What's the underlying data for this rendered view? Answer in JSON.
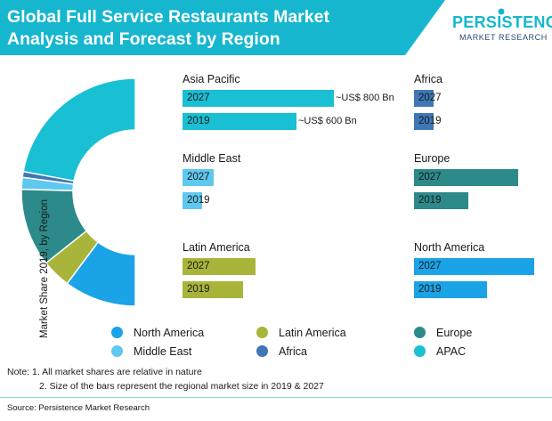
{
  "header": {
    "title_line1": "Global Full Service Restaurants Market",
    "title_line2": "Analysis and Forecast by Region"
  },
  "logo": {
    "top_text": "PERSISTENCE",
    "bottom_text": "MARKET RESEARCH"
  },
  "colors": {
    "title_bg": "#17b6cf",
    "north_america": "#1aa3e6",
    "latin_america": "#a9b43a",
    "europe": "#2d8a8a",
    "middle_east": "#5ec8ee",
    "africa": "#3e76b6",
    "apac": "#19bfd3"
  },
  "chart_data": [
    {
      "type": "pie",
      "variant": "half-donut",
      "ylabel": "Market Share 2019, by Region",
      "categories": [
        "APAC",
        "Africa",
        "Middle East",
        "Europe",
        "Latin America",
        "North America"
      ],
      "values": [
        38.1,
        1.4,
        2.9,
        19.1,
        7.1,
        17.6
      ],
      "colors": [
        "#19bfd3",
        "#3e76b6",
        "#5ec8ee",
        "#2d8a8a",
        "#a9b43a",
        "#1aa3e6"
      ],
      "note": "All market shares are relative in nature"
    },
    {
      "type": "bar",
      "orientation": "horizontal",
      "series": [
        {
          "name": "Asia Pacific",
          "categories": [
            "2027",
            "2019"
          ],
          "values": [
            800,
            600
          ],
          "labels": [
            "~US$ 800 Bn",
            "~US$ 600 Bn"
          ],
          "color": "#19bfd3"
        },
        {
          "name": "Africa",
          "categories": [
            "2027",
            "2019"
          ],
          "values": [
            11,
            10
          ],
          "color": "#3e76b6"
        },
        {
          "name": "Middle East",
          "categories": [
            "2027",
            "2019"
          ],
          "values": [
            18,
            10
          ],
          "color": "#5ec8ee"
        },
        {
          "name": "Europe",
          "categories": [
            "2027",
            "2019"
          ],
          "values": [
            60,
            31
          ],
          "color": "#2d8a8a"
        },
        {
          "name": "Latin America",
          "categories": [
            "2027",
            "2019"
          ],
          "values": [
            42,
            35
          ],
          "color": "#a9b43a"
        },
        {
          "name": "North America",
          "categories": [
            "2027",
            "2019"
          ],
          "values": [
            69,
            42
          ],
          "color": "#1aa3e6"
        }
      ],
      "note": "Size of the bars represent the regional market size in 2019 & 2027"
    }
  ],
  "legend": [
    {
      "label": "North America",
      "color": "#1aa3e6"
    },
    {
      "label": "Latin America",
      "color": "#a9b43a"
    },
    {
      "label": "Europe",
      "color": "#2d8a8a"
    },
    {
      "label": "Middle East",
      "color": "#5ec8ee"
    },
    {
      "label": "Africa",
      "color": "#3e76b6"
    },
    {
      "label": "APAC",
      "color": "#19bfd3"
    }
  ],
  "notes": {
    "line1": "Note: 1. All market shares are relative in nature",
    "line2": "2. Size of the bars represent the regional market size in 2019 & 2027"
  },
  "source": "Source: Persistence Market Research"
}
